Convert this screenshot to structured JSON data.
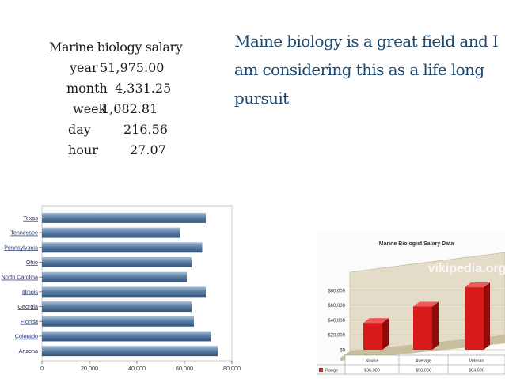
{
  "slide": {
    "salary": {
      "title": "Marine biology salary",
      "rows": [
        {
          "label": "year",
          "value": "51,975.00"
        },
        {
          "label": "month",
          "value": "4,331.25"
        },
        {
          "label": "week",
          "value": "1,082.81"
        },
        {
          "label": "day",
          "value": "216.56"
        },
        {
          "label": "hour",
          "value": "27.07"
        }
      ]
    },
    "headline": "Maine biology is a great field and I am considering this as a life long pursuit"
  },
  "chart_data": [
    {
      "type": "bar",
      "orientation": "horizontal",
      "categories": [
        "Texas",
        "Tennessee",
        "Pennsylvania",
        "Ohio",
        "North Carolina",
        "Illinois",
        "Georgia",
        "Florida",
        "Colorado",
        "Arizona"
      ],
      "values": [
        69000,
        58000,
        67500,
        63000,
        61000,
        69000,
        63000,
        64000,
        71000,
        74000
      ],
      "xlim": [
        0,
        80000
      ],
      "xticks": [
        "0",
        "20,000",
        "40,000",
        "60,000",
        "80,000"
      ],
      "grid": false,
      "colors": {
        "bar": "#5b7fa6",
        "bar_highlight": "#a9c1da"
      }
    },
    {
      "type": "bar",
      "title": "Marine Biologist Salary Data",
      "categories": [
        "Novice",
        "Average",
        "Veteran"
      ],
      "values": [
        36000,
        58000,
        84000
      ],
      "value_labels": [
        "$36,000",
        "$58,000",
        "$84,000"
      ],
      "series": [
        {
          "name": "Range",
          "values": [
            36000,
            58000,
            84000
          ]
        }
      ],
      "yticks": [
        "$0",
        "$20,000",
        "$40,000",
        "$60,000",
        "$80,000"
      ],
      "ylim": [
        0,
        100000
      ],
      "legend": "bottom-left",
      "watermark": "vikipedia.org",
      "colors": {
        "bar": "#d81a1a",
        "wall": "#e4dcc8",
        "floor": "#c9bf9f"
      }
    }
  ]
}
